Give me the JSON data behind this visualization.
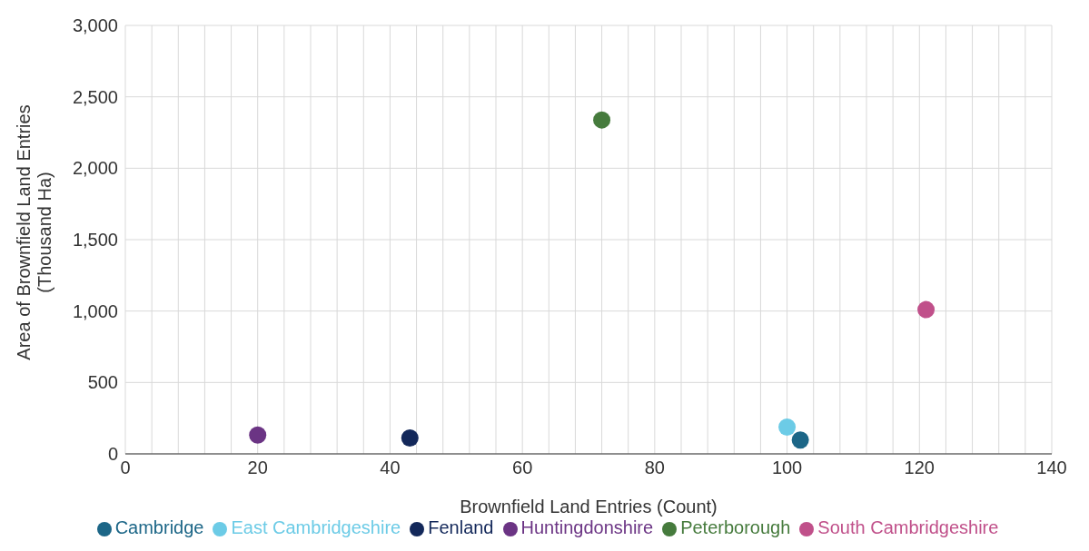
{
  "chart_data": {
    "type": "scatter",
    "xlabel": "Brownfield Land Entries (Count)",
    "ylabel": "Area of Brownfield Land Entries (Thousand Ha)",
    "xlim": [
      0,
      140
    ],
    "xticks": [
      0,
      {
        "value": 4,
        "label": null
      },
      {
        "value": 8,
        "label": null
      },
      {
        "value": 12,
        "label": null
      },
      {
        "value": 16,
        "label": null
      },
      20,
      {
        "value": 24,
        "label": null
      },
      {
        "value": 28,
        "label": null
      },
      {
        "value": 32,
        "label": null
      },
      {
        "value": 36,
        "label": null
      },
      40,
      {
        "value": 44,
        "label": null
      },
      {
        "value": 48,
        "label": null
      },
      {
        "value": 52,
        "label": null
      },
      {
        "value": 56,
        "label": null
      },
      60,
      {
        "value": 64,
        "label": null
      },
      {
        "value": 68,
        "label": null
      },
      {
        "value": 72,
        "label": null
      },
      {
        "value": 76,
        "label": null
      },
      80,
      {
        "value": 84,
        "label": null
      },
      {
        "value": 88,
        "label": null
      },
      {
        "value": 92,
        "label": null
      },
      {
        "value": 96,
        "label": null
      },
      100,
      {
        "value": 104,
        "label": null
      },
      {
        "value": 108,
        "label": null
      },
      {
        "value": 112,
        "label": null
      },
      {
        "value": 116,
        "label": null
      },
      120,
      {
        "value": 124,
        "label": null
      },
      {
        "value": 128,
        "label": null
      },
      {
        "value": 132,
        "label": null
      },
      {
        "value": 136,
        "label": null
      },
      140
    ],
    "ylim": [
      0,
      3000
    ],
    "yticks": [
      {
        "value": 0,
        "label": "0"
      },
      {
        "value": 500,
        "label": "500"
      },
      {
        "value": 1000,
        "label": "1,000"
      },
      {
        "value": 1500,
        "label": "1,500"
      },
      {
        "value": 2000,
        "label": "2,000"
      },
      {
        "value": 2500,
        "label": "2,500"
      },
      {
        "value": 3000,
        "label": "3,000"
      }
    ],
    "grid": true,
    "legend": "bottom",
    "marker": "circle",
    "series": [
      {
        "name": "Cambridge",
        "color": "#1c6687",
        "x": [
          102
        ],
        "values": [
          97
        ]
      },
      {
        "name": "East Cambridgeshire",
        "color": "#6ccbe6",
        "x": [
          100
        ],
        "values": [
          188
        ]
      },
      {
        "name": "Fenland",
        "color": "#13285a",
        "x": [
          43
        ],
        "values": [
          111
        ]
      },
      {
        "name": "Huntingdonshire",
        "color": "#6b3484",
        "x": [
          20
        ],
        "values": [
          132
        ]
      },
      {
        "name": "South Cambridgeshire",
        "color": "#c0508a",
        "x": [
          121
        ],
        "values": [
          1010
        ]
      },
      {
        "name": "Peterborough",
        "color": "#467b3d",
        "x": [
          72
        ],
        "values": [
          2338
        ]
      }
    ]
  }
}
